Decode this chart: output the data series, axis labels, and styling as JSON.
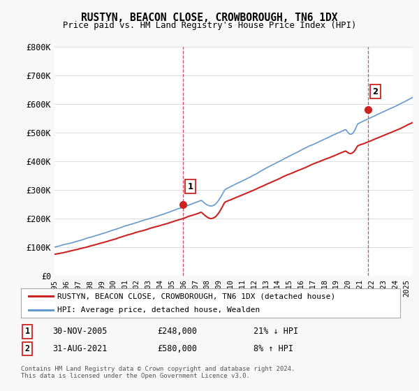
{
  "title": "RUSTYN, BEACON CLOSE, CROWBOROUGH, TN6 1DX",
  "subtitle": "Price paid vs. HM Land Registry's House Price Index (HPI)",
  "ylim": [
    0,
    800000
  ],
  "yticks": [
    0,
    100000,
    200000,
    300000,
    400000,
    500000,
    600000,
    700000,
    800000
  ],
  "ytick_labels": [
    "£0",
    "£100K",
    "£200K",
    "£300K",
    "£400K",
    "£500K",
    "£600K",
    "£700K",
    "£800K"
  ],
  "hpi_color": "#6699cc",
  "price_color": "#cc2222",
  "dot_color": "#cc2222",
  "sale1_x": 2005.917,
  "sale1_y": 248000,
  "sale1_label": "1",
  "sale2_x": 2021.667,
  "sale2_y": 580000,
  "sale2_label": "2",
  "footer": "Contains HM Land Registry data © Crown copyright and database right 2024.\nThis data is licensed under the Open Government Licence v3.0.",
  "legend_entry1": "RUSTYN, BEACON CLOSE, CROWBOROUGH, TN6 1DX (detached house)",
  "legend_entry2": "HPI: Average price, detached house, Wealden",
  "table_row1": [
    "1",
    "30-NOV-2005",
    "£248,000",
    "21% ↓ HPI"
  ],
  "table_row2": [
    "2",
    "31-AUG-2021",
    "£580,000",
    "8% ↑ HPI"
  ],
  "xmin": 1995,
  "xmax": 2025.5,
  "background_color": "#f8f8f8",
  "plot_bg": "#ffffff"
}
